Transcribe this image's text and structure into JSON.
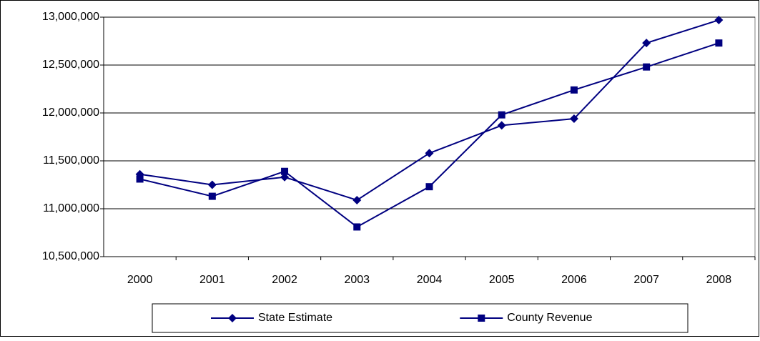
{
  "chart_data": {
    "type": "line",
    "categories": [
      "2000",
      "2001",
      "2002",
      "2003",
      "2004",
      "2005",
      "2006",
      "2007",
      "2008"
    ],
    "series": [
      {
        "name": "State Estimate",
        "color": "#000080",
        "marker": "diamond",
        "values": [
          11360000,
          11250000,
          11330000,
          11090000,
          11580000,
          11870000,
          11940000,
          12730000,
          12970000
        ]
      },
      {
        "name": "County Revenue",
        "color": "#000080",
        "marker": "square",
        "values": [
          11310000,
          11130000,
          11390000,
          10810000,
          11230000,
          11980000,
          12240000,
          12480000,
          12730000
        ]
      }
    ],
    "ylim": [
      10500000,
      13000000
    ],
    "yticks": [
      {
        "value": 10500000,
        "label": "10,500,000"
      },
      {
        "value": 11000000,
        "label": "11,000,000"
      },
      {
        "value": 11500000,
        "label": "11,500,000"
      },
      {
        "value": 12000000,
        "label": "12,000,000"
      },
      {
        "value": 12500000,
        "label": "12,500,000"
      },
      {
        "value": 13000000,
        "label": "13,000,000"
      }
    ],
    "grid": true,
    "legend": "bottom"
  }
}
